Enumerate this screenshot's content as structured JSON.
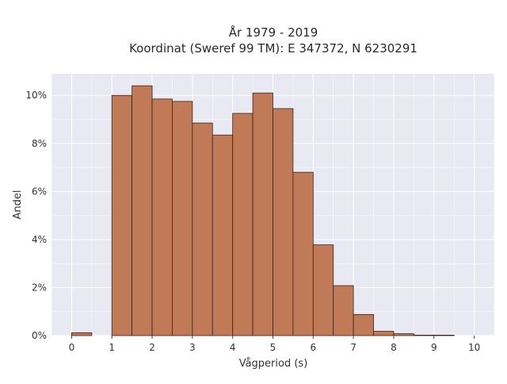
{
  "chart_data": {
    "type": "bar",
    "title_line1": "År 1979 - 2019",
    "title_line2": "Koordinat (Sweref 99 TM): E 347372, N 6230291",
    "xlabel": "Vågperiod (s)",
    "ylabel": "Andel",
    "xlim": [
      -0.5,
      10.5
    ],
    "ylim": [
      0,
      10.9
    ],
    "x_ticks": [
      0,
      1,
      2,
      3,
      4,
      5,
      6,
      7,
      8,
      9,
      10
    ],
    "y_ticks": [
      0,
      2,
      4,
      6,
      8,
      10
    ],
    "y_tick_suffix": "%",
    "bin_width": 0.5,
    "bins": [
      {
        "x0": 0.0,
        "value": 0.12
      },
      {
        "x0": 0.5,
        "value": 0.0
      },
      {
        "x0": 1.0,
        "value": 10.0
      },
      {
        "x0": 1.5,
        "value": 10.4
      },
      {
        "x0": 2.0,
        "value": 9.85
      },
      {
        "x0": 2.5,
        "value": 9.75
      },
      {
        "x0": 3.0,
        "value": 8.85
      },
      {
        "x0": 3.5,
        "value": 8.35
      },
      {
        "x0": 4.0,
        "value": 9.25
      },
      {
        "x0": 4.5,
        "value": 10.1
      },
      {
        "x0": 5.0,
        "value": 9.45
      },
      {
        "x0": 5.5,
        "value": 6.8
      },
      {
        "x0": 6.0,
        "value": 3.78
      },
      {
        "x0": 6.5,
        "value": 2.08
      },
      {
        "x0": 7.0,
        "value": 0.88
      },
      {
        "x0": 7.5,
        "value": 0.18
      },
      {
        "x0": 8.0,
        "value": 0.08
      },
      {
        "x0": 8.5,
        "value": 0.02
      },
      {
        "x0": 9.0,
        "value": 0.02
      }
    ],
    "grid": true,
    "bar_color": "#c07a57",
    "bar_edge_color": "#3b2418",
    "plot_bg": "#e9e9f3",
    "grid_color": "#ffffff"
  }
}
